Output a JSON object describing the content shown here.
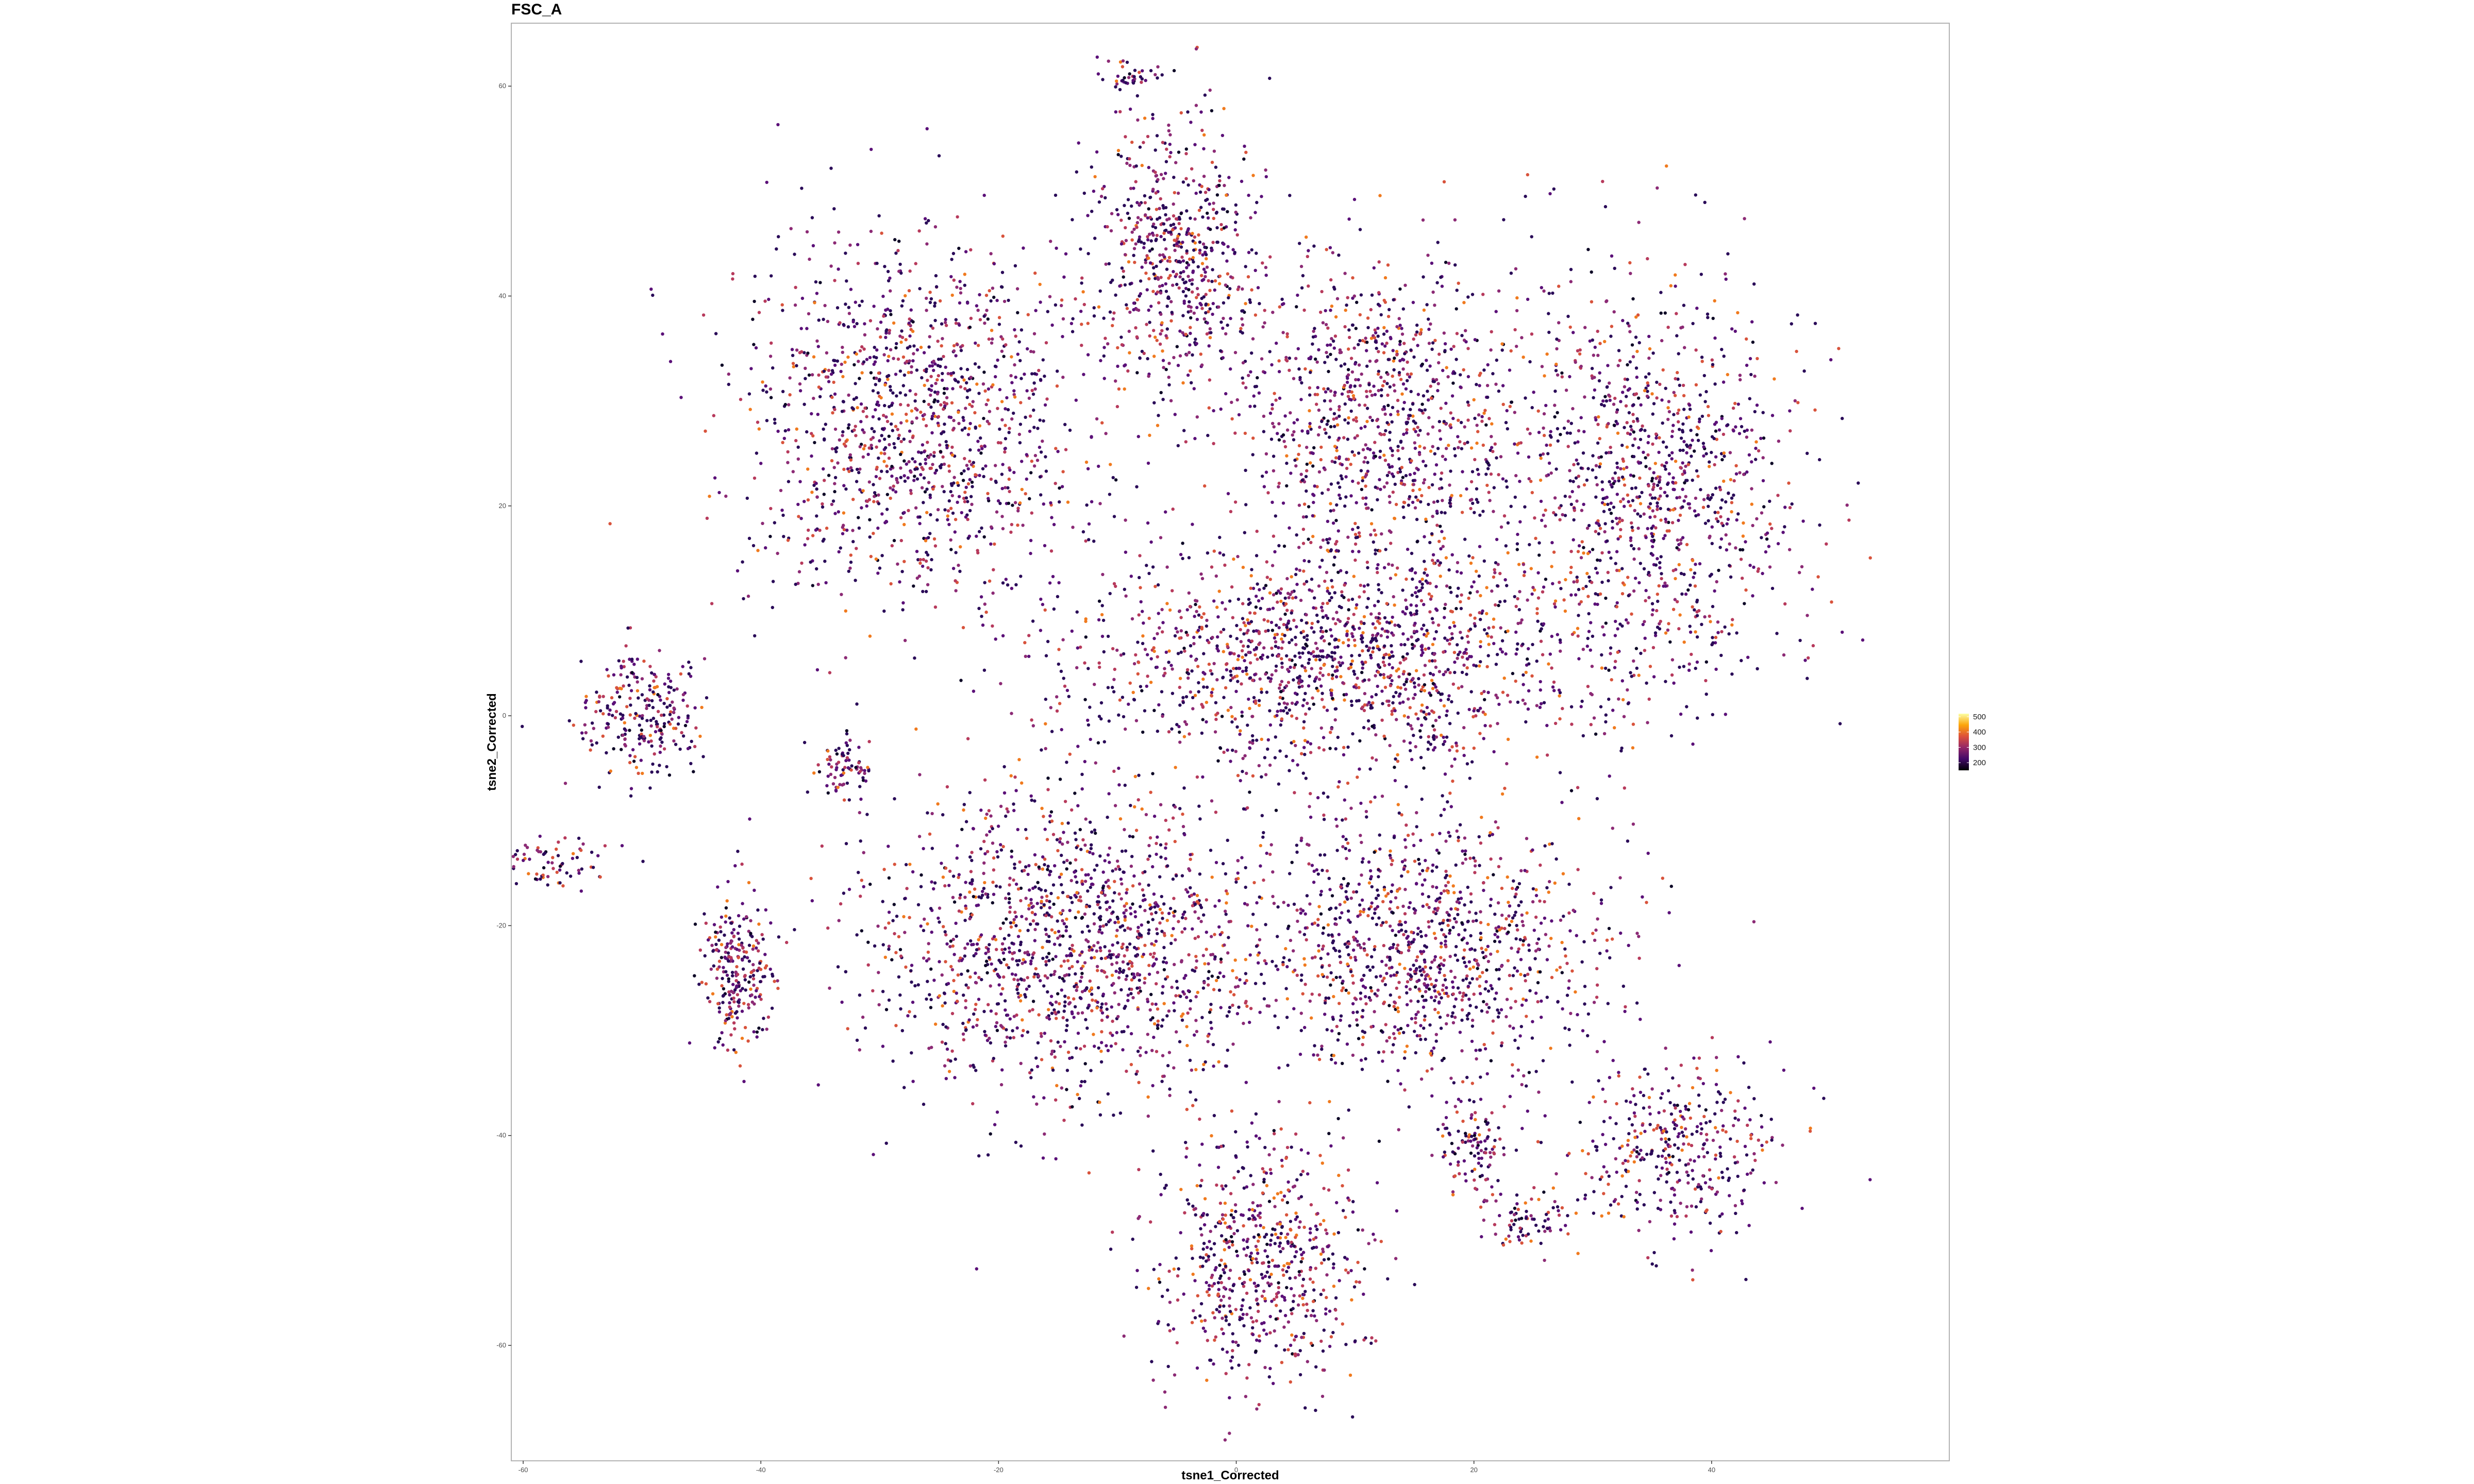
{
  "chart_data": {
    "type": "scatter",
    "title": "FSC_A",
    "xlabel": "tsne1_Corrected",
    "ylabel": "tsne2_Corrected",
    "xlim": [
      -61,
      60
    ],
    "ylim": [
      -71,
      66
    ],
    "x_ticks": [
      "-60",
      "-40",
      "-20",
      "0",
      "20",
      "40"
    ],
    "y_ticks": [
      "60",
      "40",
      "20",
      "0",
      "-20",
      "-40",
      "-60"
    ],
    "x_tick_values": [
      -60,
      -40,
      -20,
      0,
      20,
      40
    ],
    "y_tick_values": [
      60,
      40,
      20,
      0,
      -20,
      -40,
      -60
    ],
    "grid": false,
    "legend_position": "right",
    "color_scale": {
      "name": "inferno",
      "range": [
        150,
        520
      ],
      "breaks": [
        500,
        400,
        300,
        200
      ],
      "break_labels": [
        "500",
        "400",
        "300",
        "200"
      ],
      "colors": [
        "#000004",
        "#420a68",
        "#932667",
        "#dd513a",
        "#fca50a",
        "#fcffa4"
      ]
    },
    "point_color_mix": [
      {
        "color": "#2a0a58",
        "weight": 0.3
      },
      {
        "color": "#5b1078",
        "weight": 0.22
      },
      {
        "color": "#8c2a75",
        "weight": 0.16
      },
      {
        "color": "#b73a5c",
        "weight": 0.12
      },
      {
        "color": "#d8533c",
        "weight": 0.08
      },
      {
        "color": "#f07a1e",
        "weight": 0.07
      },
      {
        "color": "#0d0626",
        "weight": 0.05
      }
    ],
    "clusters": [
      {
        "cx": -27,
        "cy": 28,
        "rx": 16,
        "ry": 20,
        "n": 1300
      },
      {
        "cx": -5,
        "cy": 44,
        "rx": 8,
        "ry": 15,
        "n": 650
      },
      {
        "cx": 12,
        "cy": 28,
        "rx": 14,
        "ry": 17,
        "n": 1000
      },
      {
        "cx": 35,
        "cy": 22,
        "rx": 13,
        "ry": 22,
        "n": 1100
      },
      {
        "cx": 8,
        "cy": 5,
        "rx": 24,
        "ry": 12,
        "n": 1500
      },
      {
        "cx": -50,
        "cy": 0,
        "rx": 5,
        "ry": 6,
        "n": 260
      },
      {
        "cx": -14,
        "cy": -22,
        "rx": 19,
        "ry": 16,
        "n": 1500
      },
      {
        "cx": 16,
        "cy": -22,
        "rx": 16,
        "ry": 14,
        "n": 1100
      },
      {
        "cx": 2,
        "cy": -52,
        "rx": 10,
        "ry": 14,
        "n": 650
      },
      {
        "cx": 37,
        "cy": -41,
        "rx": 9,
        "ry": 9,
        "n": 380
      },
      {
        "cx": 20,
        "cy": -41,
        "rx": 3,
        "ry": 5,
        "n": 110
      },
      {
        "cx": 25,
        "cy": -48,
        "rx": 4,
        "ry": 3,
        "n": 80
      },
      {
        "cx": -42,
        "cy": -24,
        "rx": 3.5,
        "ry": 8,
        "n": 260
      },
      {
        "cx": -58,
        "cy": -14,
        "rx": 6,
        "ry": 3,
        "n": 90
      },
      {
        "cx": -33,
        "cy": -5,
        "rx": 3,
        "ry": 4,
        "n": 80
      },
      {
        "cx": -9,
        "cy": 61,
        "rx": 3,
        "ry": 2,
        "n": 40
      }
    ]
  }
}
